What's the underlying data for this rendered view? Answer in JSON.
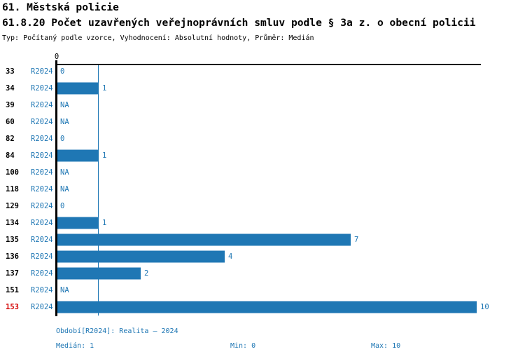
{
  "header": {
    "title": "61. Městská policie",
    "subtitle": "61.8.20 Počet uzavřených veřejnoprávních smluv podle § 3a z. o obecní policii",
    "meta": "Typ: Počítaný podle vzorce, Vyhodnocení: Absolutní hodnoty, Průměr: Medián"
  },
  "chart_data": {
    "type": "bar",
    "orientation": "horizontal",
    "title": "61.8.20 Počet uzavřených veřejnoprávních smluv podle § 3a z. o obecní policii",
    "categories": [
      "33",
      "34",
      "39",
      "60",
      "82",
      "84",
      "100",
      "118",
      "129",
      "134",
      "135",
      "136",
      "137",
      "151",
      "153"
    ],
    "series_label": "R2024",
    "values": [
      0,
      1,
      null,
      null,
      0,
      1,
      null,
      null,
      0,
      1,
      7,
      4,
      2,
      null,
      10
    ],
    "value_labels": [
      "0",
      "1",
      "NA",
      "NA",
      "0",
      "1",
      "NA",
      "NA",
      "0",
      "1",
      "7",
      "4",
      "2",
      "NA",
      "10"
    ],
    "xlim": [
      0,
      10.1
    ],
    "x_tick_labels": [
      "0"
    ],
    "median_value": 1,
    "highlighted_category": "153",
    "grid": "none",
    "legend_position": "none"
  },
  "footer": {
    "period": "Období[R2024]: Realita – 2024",
    "median": "Medián: 1",
    "min": "Min: 0",
    "max": "Max: 10"
  },
  "colors": {
    "bar": "#1F77B4",
    "series_text": "#1F77B4",
    "category_text": "#000000",
    "highlight_text": "#D40000",
    "axis": "#000000",
    "median_line": "#1F77B4",
    "footer_text": "#1F77B4"
  }
}
